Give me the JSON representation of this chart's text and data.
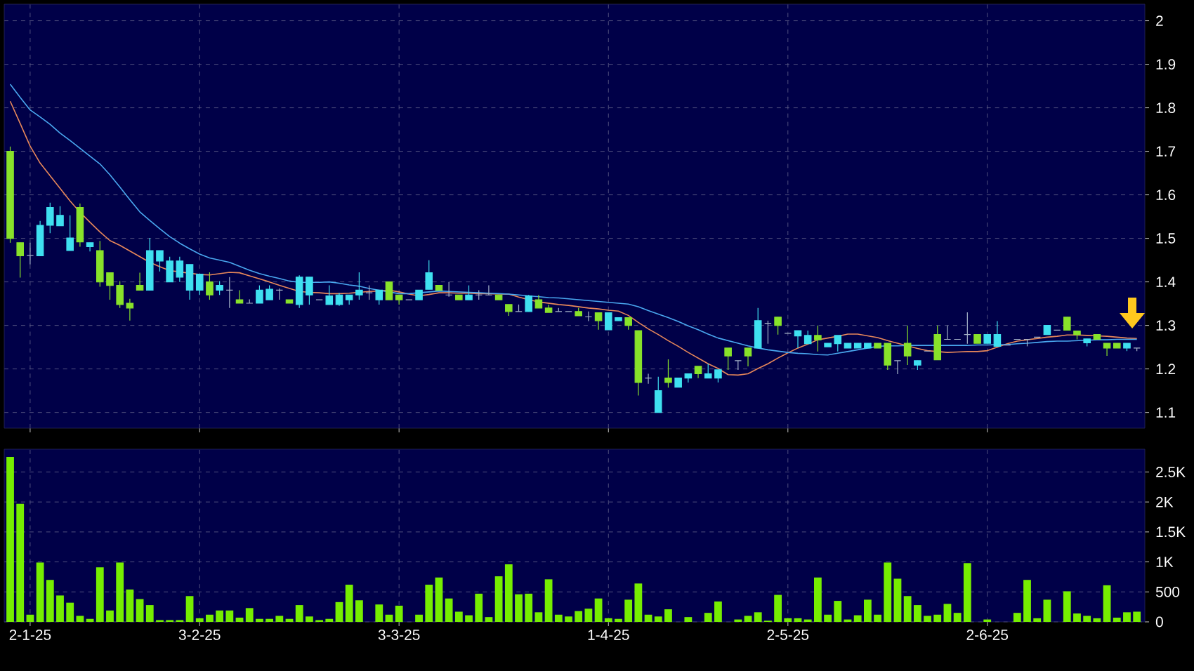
{
  "chart_data": [
    {
      "type": "candlestick",
      "tick_labels": "y",
      "grid": true,
      "ylim": [
        1.064,
        2.038
      ],
      "yticks": [
        1.1,
        1.2,
        1.3,
        1.4,
        1.5,
        1.6,
        1.7,
        1.8,
        1.9,
        2
      ],
      "categories": [
        null,
        null,
        null,
        null,
        null,
        null,
        null,
        null,
        null,
        null,
        null,
        null,
        null,
        null,
        null,
        null,
        null,
        null,
        null,
        null,
        null,
        null,
        null,
        null,
        null,
        null,
        null,
        null,
        null,
        null,
        null,
        null,
        null,
        null,
        null,
        null,
        null,
        null,
        null,
        null,
        null,
        null,
        null,
        null,
        null,
        null,
        null,
        null,
        null,
        null,
        null,
        null,
        null,
        null,
        null,
        null,
        null,
        null,
        null,
        null,
        null,
        null,
        null,
        null,
        null,
        null,
        null,
        null,
        null,
        null,
        null,
        null,
        null,
        null,
        null,
        null,
        null,
        null,
        null,
        null,
        null,
        null,
        null,
        null,
        null,
        null,
        null,
        null,
        null,
        null,
        null,
        null,
        null,
        null,
        null,
        null,
        null,
        null,
        null,
        null,
        null,
        null,
        null,
        null,
        null,
        null,
        null,
        null,
        null,
        null,
        null,
        null,
        null,
        null
      ],
      "ohlc": [
        [
          1.7,
          1.711,
          1.49,
          1.5
        ],
        [
          1.49,
          1.49,
          1.41,
          1.46
        ],
        [
          1.461,
          1.49,
          1.44,
          1.461
        ],
        [
          1.46,
          1.54,
          1.46,
          1.53
        ],
        [
          1.53,
          1.582,
          1.512,
          1.571
        ],
        [
          1.529,
          1.574,
          1.529,
          1.553
        ],
        [
          1.472,
          1.553,
          1.472,
          1.501
        ],
        [
          1.571,
          1.58,
          1.481,
          1.492
        ],
        [
          1.481,
          1.49,
          1.47,
          1.49
        ],
        [
          1.472,
          1.494,
          1.389,
          1.4
        ],
        [
          1.421,
          1.421,
          1.359,
          1.392
        ],
        [
          1.392,
          1.402,
          1.34,
          1.348
        ],
        [
          1.351,
          1.361,
          1.311,
          1.34
        ],
        [
          1.392,
          1.421,
          1.381,
          1.381
        ],
        [
          1.381,
          1.501,
          1.381,
          1.472
        ],
        [
          1.448,
          1.472,
          1.424,
          1.472
        ],
        [
          1.4,
          1.458,
          1.4,
          1.448
        ],
        [
          1.411,
          1.458,
          1.4,
          1.448
        ],
        [
          1.381,
          1.44,
          1.359,
          1.44
        ],
        [
          1.381,
          1.418,
          1.37,
          1.418
        ],
        [
          1.4,
          1.422,
          1.359,
          1.37
        ],
        [
          1.381,
          1.402,
          1.37,
          1.392
        ],
        [
          1.381,
          1.411,
          1.34,
          1.381
        ],
        [
          1.359,
          1.381,
          1.351,
          1.351
        ],
        [
          1.351,
          1.36,
          1.351,
          1.351
        ],
        [
          1.351,
          1.392,
          1.351,
          1.381
        ],
        [
          1.359,
          1.392,
          1.359,
          1.383
        ],
        [
          1.381,
          1.385,
          1.359,
          1.381
        ],
        [
          1.359,
          1.359,
          1.351,
          1.351
        ],
        [
          1.348,
          1.415,
          1.34,
          1.411
        ],
        [
          1.37,
          1.411,
          1.348,
          1.411
        ],
        [
          1.359,
          1.359,
          1.359,
          1.359
        ],
        [
          1.348,
          1.392,
          1.348,
          1.368
        ],
        [
          1.348,
          1.375,
          1.345,
          1.37
        ],
        [
          1.359,
          1.37,
          1.348,
          1.37
        ],
        [
          1.37,
          1.422,
          1.359,
          1.381
        ],
        [
          1.375,
          1.392,
          1.359,
          1.375
        ],
        [
          1.359,
          1.381,
          1.348,
          1.381
        ],
        [
          1.4,
          1.4,
          1.359,
          1.359
        ],
        [
          1.37,
          1.37,
          1.348,
          1.359
        ],
        [
          1.359,
          1.359,
          1.359,
          1.359
        ],
        [
          1.359,
          1.381,
          1.359,
          1.381
        ],
        [
          1.383,
          1.45,
          1.383,
          1.421
        ],
        [
          1.392,
          1.392,
          1.381,
          1.381
        ],
        [
          1.37,
          1.4,
          1.366,
          1.37
        ],
        [
          1.37,
          1.37,
          1.359,
          1.359
        ],
        [
          1.359,
          1.392,
          1.359,
          1.37
        ],
        [
          1.37,
          1.381,
          1.359,
          1.37
        ],
        [
          1.37,
          1.392,
          1.37,
          1.37
        ],
        [
          1.37,
          1.37,
          1.359,
          1.359
        ],
        [
          1.348,
          1.348,
          1.322,
          1.332
        ],
        [
          1.332,
          1.348,
          1.332,
          1.332
        ],
        [
          1.332,
          1.37,
          1.332,
          1.368
        ],
        [
          1.359,
          1.37,
          1.34,
          1.34
        ],
        [
          1.34,
          1.348,
          1.33,
          1.33
        ],
        [
          1.332,
          1.34,
          1.332,
          1.332
        ],
        [
          1.332,
          1.332,
          1.332,
          1.332
        ],
        [
          1.332,
          1.34,
          1.322,
          1.322
        ],
        [
          1.32,
          1.332,
          1.31,
          1.32
        ],
        [
          1.329,
          1.329,
          1.29,
          1.311
        ],
        [
          1.29,
          1.33,
          1.29,
          1.329
        ],
        [
          1.311,
          1.318,
          1.311,
          1.318
        ],
        [
          1.318,
          1.318,
          1.29,
          1.3
        ],
        [
          1.288,
          1.288,
          1.139,
          1.169
        ],
        [
          1.179,
          1.189,
          1.166,
          1.179
        ],
        [
          1.1,
          1.182,
          1.1,
          1.15
        ],
        [
          1.179,
          1.222,
          1.157,
          1.169
        ],
        [
          1.158,
          1.179,
          1.158,
          1.179
        ],
        [
          1.179,
          1.189,
          1.169,
          1.189
        ],
        [
          1.206,
          1.206,
          1.179,
          1.189
        ],
        [
          1.179,
          1.212,
          1.179,
          1.189
        ],
        [
          1.179,
          1.198,
          1.169,
          1.198
        ],
        [
          1.248,
          1.248,
          1.198,
          1.23
        ],
        [
          1.219,
          1.219,
          1.198,
          1.219
        ],
        [
          1.248,
          1.248,
          1.206,
          1.23
        ],
        [
          1.248,
          1.34,
          1.248,
          1.311
        ],
        [
          1.305,
          1.311,
          1.258,
          1.305
        ],
        [
          1.319,
          1.319,
          1.279,
          1.3
        ],
        [
          1.282,
          1.282,
          1.282,
          1.282
        ],
        [
          1.276,
          1.288,
          1.248,
          1.288
        ],
        [
          1.258,
          1.288,
          1.258,
          1.277
        ],
        [
          1.277,
          1.3,
          1.24,
          1.267
        ],
        [
          1.251,
          1.259,
          1.251,
          1.259
        ],
        [
          1.258,
          1.277,
          1.24,
          1.277
        ],
        [
          1.248,
          1.259,
          1.248,
          1.259
        ],
        [
          1.248,
          1.259,
          1.248,
          1.259
        ],
        [
          1.248,
          1.259,
          1.248,
          1.259
        ],
        [
          1.259,
          1.259,
          1.248,
          1.248
        ],
        [
          1.259,
          1.259,
          1.198,
          1.209
        ],
        [
          1.219,
          1.219,
          1.188,
          1.219
        ],
        [
          1.259,
          1.3,
          1.209,
          1.23
        ],
        [
          1.209,
          1.219,
          1.198,
          1.219
        ],
        [
          1.241,
          1.241,
          1.241,
          1.241
        ],
        [
          1.279,
          1.3,
          1.221,
          1.221
        ],
        [
          1.268,
          1.3,
          1.268,
          1.268
        ],
        [
          1.268,
          1.268,
          1.268,
          1.268
        ],
        [
          1.279,
          1.33,
          1.258,
          1.279
        ],
        [
          1.279,
          1.279,
          1.259,
          1.259
        ],
        [
          1.259,
          1.279,
          1.259,
          1.279
        ],
        [
          1.252,
          1.31,
          1.252,
          1.279
        ],
        [
          1.255,
          1.255,
          1.255,
          1.255
        ],
        [
          1.268,
          1.268,
          1.268,
          1.268
        ],
        [
          1.268,
          1.268,
          1.252,
          1.268
        ],
        [
          1.273,
          1.273,
          1.273,
          1.273
        ],
        [
          1.279,
          1.3,
          1.279,
          1.3
        ],
        [
          1.289,
          1.289,
          1.289,
          1.289
        ],
        [
          1.319,
          1.319,
          1.289,
          1.289
        ],
        [
          1.287,
          1.287,
          1.268,
          1.279
        ],
        [
          1.26,
          1.269,
          1.252,
          1.269
        ],
        [
          1.279,
          1.279,
          1.268,
          1.268
        ],
        [
          1.259,
          1.259,
          1.23,
          1.248
        ],
        [
          1.259,
          1.259,
          1.248,
          1.248
        ],
        [
          1.248,
          1.259,
          1.241,
          1.259
        ],
        [
          1.248,
          1.248,
          1.241,
          1.248
        ]
      ],
      "colors": [
        "#88e22a",
        "#88e22a",
        "#a6b4c8",
        "#3fe0f0",
        "#3fe0f0",
        "#3fe0f0",
        "#3fe0f0",
        "#88e22a",
        "#3fe0f0",
        "#88e22a",
        "#88e22a",
        "#88e22a",
        "#88e22a",
        "#88e22a",
        "#3fe0f0",
        "#3fe0f0",
        "#3fe0f0",
        "#3fe0f0",
        "#3fe0f0",
        "#3fe0f0",
        "#88e22a",
        "#3fe0f0",
        "#a6b4c8",
        "#88e22a",
        "#a6b4c8",
        "#3fe0f0",
        "#3fe0f0",
        "#a6b4c8",
        "#88e22a",
        "#3fe0f0",
        "#3fe0f0",
        "#a6b4c8",
        "#3fe0f0",
        "#3fe0f0",
        "#3fe0f0",
        "#3fe0f0",
        "#a6b4c8",
        "#3fe0f0",
        "#88e22a",
        "#88e22a",
        "#a6b4c8",
        "#3fe0f0",
        "#3fe0f0",
        "#88e22a",
        "#a6b4c8",
        "#88e22a",
        "#3fe0f0",
        "#a6b4c8",
        "#a6b4c8",
        "#88e22a",
        "#88e22a",
        "#a6b4c8",
        "#3fe0f0",
        "#88e22a",
        "#88e22a",
        "#a6b4c8",
        "#a6b4c8",
        "#88e22a",
        "#a6b4c8",
        "#88e22a",
        "#3fe0f0",
        "#3fe0f0",
        "#88e22a",
        "#88e22a",
        "#a6b4c8",
        "#3fe0f0",
        "#88e22a",
        "#3fe0f0",
        "#3fe0f0",
        "#88e22a",
        "#3fe0f0",
        "#3fe0f0",
        "#88e22a",
        "#a6b4c8",
        "#88e22a",
        "#3fe0f0",
        "#a6b4c8",
        "#88e22a",
        "#a6b4c8",
        "#3fe0f0",
        "#3fe0f0",
        "#88e22a",
        "#3fe0f0",
        "#3fe0f0",
        "#3fe0f0",
        "#3fe0f0",
        "#3fe0f0",
        "#88e22a",
        "#88e22a",
        "#a6b4c8",
        "#88e22a",
        "#3fe0f0",
        "#a6b4c8",
        "#88e22a",
        "#a6b4c8",
        "#a6b4c8",
        "#a6b4c8",
        "#88e22a",
        "#3fe0f0",
        "#3fe0f0",
        "#a6b4c8",
        "#a6b4c8",
        "#a6b4c8",
        "#a6b4c8",
        "#3fe0f0",
        "#a6b4c8",
        "#88e22a",
        "#88e22a",
        "#3fe0f0",
        "#88e22a",
        "#88e22a",
        "#88e22a",
        "#3fe0f0",
        "#a6b4c8"
      ],
      "series": [
        {
          "type": "line",
          "color": "#e8885a",
          "values": [
            1.815,
            1.764,
            1.712,
            1.673,
            1.644,
            1.615,
            1.586,
            1.56,
            1.537,
            1.515,
            1.495,
            1.484,
            1.471,
            1.458,
            1.445,
            1.435,
            1.426,
            1.423,
            1.42,
            1.417,
            1.416,
            1.419,
            1.422,
            1.421,
            1.414,
            1.407,
            1.4,
            1.392,
            1.385,
            1.378,
            1.376,
            1.375,
            1.373,
            1.373,
            1.374,
            1.376,
            1.378,
            1.379,
            1.381,
            1.377,
            1.372,
            1.368,
            1.371,
            1.375,
            1.375,
            1.374,
            1.374,
            1.373,
            1.373,
            1.372,
            1.372,
            1.365,
            1.359,
            1.354,
            1.351,
            1.348,
            1.346,
            1.343,
            1.34,
            1.338,
            1.335,
            1.333,
            1.323,
            1.307,
            1.292,
            1.279,
            1.265,
            1.252,
            1.238,
            1.225,
            1.212,
            1.201,
            1.187,
            1.186,
            1.189,
            1.201,
            1.212,
            1.225,
            1.237,
            1.248,
            1.257,
            1.267,
            1.271,
            1.275,
            1.28,
            1.28,
            1.276,
            1.272,
            1.265,
            1.259,
            1.253,
            1.247,
            1.242,
            1.24,
            1.238,
            1.239,
            1.24,
            1.24,
            1.242,
            1.25,
            1.258,
            1.264,
            1.267,
            1.27,
            1.273,
            1.275,
            1.278,
            1.278,
            1.277,
            1.276,
            1.275,
            1.273,
            1.271,
            1.27
          ]
        },
        {
          "type": "line",
          "color": "#4aa8f0",
          "values": [
            1.854,
            1.824,
            1.795,
            1.779,
            1.762,
            1.742,
            1.725,
            1.707,
            1.689,
            1.671,
            1.646,
            1.618,
            1.589,
            1.561,
            1.541,
            1.522,
            1.504,
            1.489,
            1.476,
            1.464,
            1.455,
            1.45,
            1.445,
            1.436,
            1.427,
            1.419,
            1.413,
            1.408,
            1.402,
            1.399,
            1.399,
            1.399,
            1.4,
            1.397,
            1.393,
            1.39,
            1.385,
            1.381,
            1.377,
            1.373,
            1.373,
            1.375,
            1.377,
            1.379,
            1.378,
            1.377,
            1.376,
            1.375,
            1.374,
            1.373,
            1.372,
            1.37,
            1.368,
            1.366,
            1.364,
            1.363,
            1.361,
            1.359,
            1.357,
            1.355,
            1.353,
            1.351,
            1.349,
            1.343,
            1.334,
            1.326,
            1.318,
            1.309,
            1.299,
            1.29,
            1.28,
            1.271,
            1.265,
            1.259,
            1.253,
            1.248,
            1.244,
            1.241,
            1.238,
            1.236,
            1.235,
            1.233,
            1.232,
            1.236,
            1.24,
            1.244,
            1.248,
            1.252,
            1.253,
            1.253,
            1.254,
            1.254,
            1.254,
            1.254,
            1.254,
            1.254,
            1.254,
            1.255,
            1.255,
            1.256,
            1.256,
            1.258,
            1.259,
            1.261,
            1.263,
            1.264,
            1.264,
            1.265,
            1.266,
            1.267,
            1.267,
            1.268,
            1.268,
            1.268
          ]
        }
      ]
    },
    {
      "type": "bar",
      "color": "#76ee00",
      "grid": true,
      "ylim": [
        0,
        2880
      ],
      "yticks": [
        0,
        500,
        {
          "value": 1000,
          "label": "1K"
        },
        {
          "value": 1500,
          "label": "1.5K"
        },
        {
          "value": 2000,
          "label": "2K"
        },
        {
          "value": 2500,
          "label": "2.5K"
        }
      ],
      "categories": [
        null,
        null,
        "2-1-25",
        null,
        null,
        null,
        null,
        null,
        null,
        null,
        null,
        null,
        null,
        null,
        null,
        null,
        null,
        null,
        null,
        "3-2-25",
        null,
        null,
        null,
        null,
        null,
        null,
        null,
        null,
        null,
        null,
        null,
        null,
        null,
        null,
        null,
        null,
        null,
        null,
        null,
        "3-3-25",
        null,
        null,
        null,
        null,
        null,
        null,
        null,
        null,
        null,
        null,
        null,
        null,
        null,
        null,
        null,
        null,
        null,
        null,
        null,
        null,
        "1-4-25",
        null,
        null,
        null,
        null,
        null,
        null,
        null,
        null,
        null,
        null,
        null,
        null,
        null,
        null,
        null,
        null,
        null,
        "2-5-25",
        null,
        null,
        null,
        null,
        null,
        null,
        null,
        null,
        null,
        null,
        null,
        null,
        null,
        null,
        null,
        null,
        null,
        null,
        null,
        "2-6-25",
        null,
        null,
        null,
        null,
        null,
        null,
        null,
        null,
        null,
        null,
        null,
        null,
        null,
        null,
        null
      ],
      "values": [
        2750,
        1970,
        120,
        990,
        700,
        440,
        320,
        100,
        50,
        910,
        190,
        990,
        540,
        380,
        280,
        30,
        30,
        30,
        430,
        60,
        120,
        190,
        190,
        70,
        230,
        50,
        50,
        100,
        50,
        280,
        90,
        30,
        50,
        330,
        620,
        360,
        0,
        290,
        120,
        270,
        0,
        120,
        620,
        740,
        390,
        170,
        110,
        470,
        80,
        760,
        960,
        460,
        470,
        160,
        710,
        120,
        90,
        180,
        220,
        390,
        60,
        50,
        370,
        640,
        120,
        90,
        210,
        0,
        80,
        0,
        150,
        340,
        0,
        40,
        100,
        160,
        20,
        450,
        60,
        60,
        40,
        740,
        120,
        350,
        40,
        110,
        370,
        120,
        990,
        720,
        430,
        280,
        100,
        120,
        300,
        150,
        980,
        0,
        40,
        0,
        0,
        150,
        700,
        60,
        370,
        0,
        510,
        140,
        100,
        60,
        610,
        70,
        160,
        170
      ]
    }
  ]
}
